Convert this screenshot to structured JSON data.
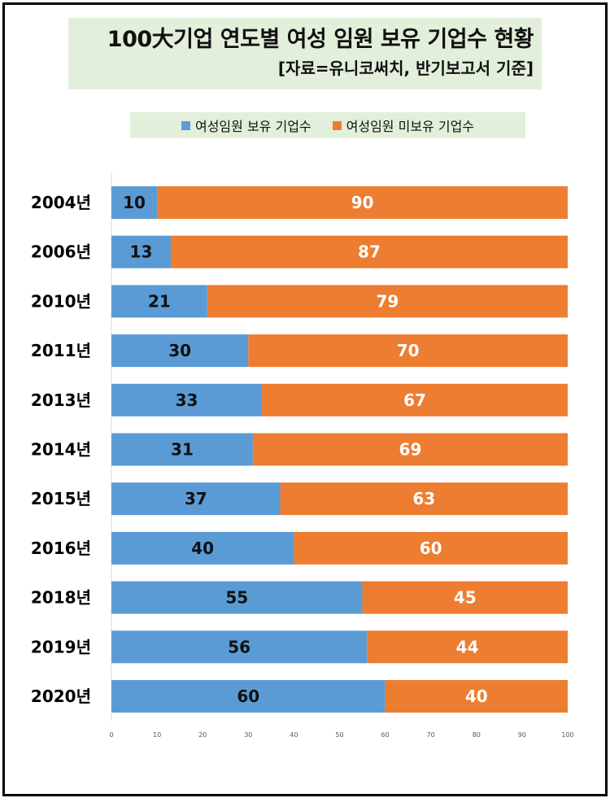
{
  "title": "100大기업 연도별 여성 임원 보유 기업수 현황",
  "subtitle": "[자료=유니코써치, 반기보고서 기준]",
  "colors": {
    "series1": "#5b9bd5",
    "series2": "#ed7d31",
    "panel": "#e2efda"
  },
  "chart_data": {
    "type": "bar",
    "orientation": "horizontal",
    "stacked": true,
    "categories": [
      "2004년",
      "2006년",
      "2010년",
      "2011년",
      "2013년",
      "2014년",
      "2015년",
      "2016년",
      "2018년",
      "2019년",
      "2020년"
    ],
    "series": [
      {
        "name": "여성임원 보유 기업수",
        "values": [
          10,
          13,
          21,
          30,
          33,
          31,
          37,
          40,
          55,
          56,
          60
        ]
      },
      {
        "name": "여성임원 미보유 기업수",
        "values": [
          90,
          87,
          79,
          70,
          67,
          69,
          63,
          60,
          45,
          44,
          40
        ]
      }
    ],
    "xlim": [
      0,
      100
    ],
    "xticks": [
      "0",
      "10",
      "20",
      "30",
      "40",
      "50",
      "60",
      "70",
      "80",
      "90",
      "100"
    ],
    "legend": "top",
    "grid": false
  }
}
